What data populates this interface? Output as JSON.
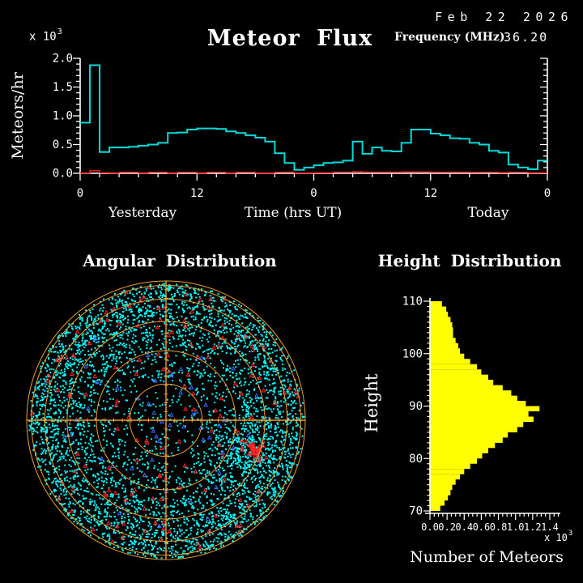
{
  "header": {
    "date": "Feb 22 2026",
    "title": "Meteor Flux",
    "frequency_label": "Frequency (MHz)",
    "frequency_value": "36.20"
  },
  "chart_data": [
    {
      "id": "meteor_flux_timeseries",
      "type": "line",
      "title": "Meteor Flux",
      "ylabel": "Meteors/hr",
      "xlabel": "Time (hrs UT)",
      "day_labels": [
        "Yesterday",
        "Today"
      ],
      "y_scale_factor": {
        "base": "x 10",
        "exponent": "3"
      },
      "ylim": [
        0.0,
        2.0
      ],
      "ytick_labels": [
        "0.0",
        "0.5",
        "1.0",
        "1.5",
        "2.0"
      ],
      "xtick_labels": [
        "0",
        "12",
        "0",
        "12",
        "0"
      ],
      "x_span_hours": 48,
      "grid": false,
      "legend": "none",
      "series": [
        {
          "name": "cyan-flux",
          "color": "#00DCDC",
          "step_values": [
            0.88,
            1.88,
            0.37,
            0.45,
            0.45,
            0.46,
            0.48,
            0.5,
            0.53,
            0.7,
            0.71,
            0.76,
            0.78,
            0.78,
            0.77,
            0.73,
            0.7,
            0.66,
            0.62,
            0.55,
            0.35,
            0.18,
            0.06,
            0.1,
            0.14,
            0.18,
            0.19,
            0.22,
            0.55,
            0.34,
            0.45,
            0.39,
            0.38,
            0.53,
            0.76,
            0.76,
            0.69,
            0.66,
            0.61,
            0.6,
            0.53,
            0.5,
            0.39,
            0.36,
            0.15,
            0.1,
            0.07,
            0.22
          ]
        },
        {
          "name": "red-baseline",
          "color": "#FF1111",
          "step_values": [
            0.005,
            0.045,
            0.008,
            0.005,
            0.018,
            0.018,
            0.005,
            0.018,
            0.018,
            0.005,
            0.018,
            0.018,
            0.005,
            0.018,
            0.018,
            0.005,
            0.018,
            0.018,
            0.005,
            0.005,
            0.018,
            0.018,
            0.005,
            0.005,
            0.008,
            0.008,
            0.02,
            0.02,
            0.028,
            0.02,
            0.02,
            0.02,
            0.02,
            0.022,
            0.022,
            0.022,
            0.02,
            0.018,
            0.02,
            0.02,
            0.015,
            0.018,
            0.018,
            0.012,
            0.018,
            0.018,
            0.008,
            0.008
          ]
        }
      ]
    },
    {
      "id": "angular_distribution",
      "type": "scatter",
      "title": "Angular Distribution",
      "projection": "polar-sky-map",
      "grid_color": "#F0A030",
      "elevation_rings_deg": [
        0,
        15,
        30,
        45,
        60,
        75
      ],
      "ring_radius_fractions": [
        1.0,
        0.968,
        0.87,
        0.71,
        0.5,
        0.26
      ],
      "markers": [
        {
          "name": "echo-dots",
          "color": "#00FFFF",
          "count": 4780
        },
        {
          "name": "red-triangles",
          "color": "#FF2222",
          "count": 150
        },
        {
          "name": "blue-triangles",
          "color": "#3E6BFF",
          "count": 50
        }
      ],
      "density_bands_fraction_weighted": [
        [
          0.78,
          1.0,
          2600
        ],
        [
          0.55,
          0.78,
          1500
        ],
        [
          0.3,
          0.55,
          550
        ],
        [
          0.02,
          0.3,
          130
        ]
      ],
      "dense_cluster": {
        "dx": 95,
        "dy": 36,
        "sigma": 20,
        "count": 260,
        "red_dx": 110,
        "red_dy": 37,
        "red_sigma": 7,
        "red_count": 35
      }
    },
    {
      "id": "height_distribution",
      "type": "bar",
      "title": "Height Distribution",
      "ylabel": "Height",
      "xlabel": "Number of Meteors",
      "x_scale_factor": {
        "base": "x 10",
        "exponent": "3"
      },
      "bar_color": "#FFFF00",
      "ylim_km": [
        70,
        110
      ],
      "xlim": [
        0.0,
        1.5
      ],
      "ytick_labels": [
        "70",
        "80",
        "90",
        "100",
        "110"
      ],
      "xtick_labels": [
        "0.0",
        "0.2",
        "0.4",
        "0.6",
        "0.8",
        "1.0",
        "1.2",
        "1.4"
      ],
      "bin_bottom_km": [
        70,
        71,
        72,
        73,
        74,
        75,
        76,
        77,
        78,
        79,
        80,
        81,
        82,
        83,
        84,
        85,
        86,
        87,
        88,
        89,
        90,
        91,
        92,
        93,
        94,
        95,
        96,
        97,
        98,
        99,
        100,
        101,
        102,
        103,
        104,
        105,
        106,
        107,
        108,
        109
      ],
      "counts": [
        0.12,
        0.17,
        0.21,
        0.24,
        0.26,
        0.3,
        0.35,
        0.4,
        0.47,
        0.55,
        0.61,
        0.68,
        0.76,
        0.85,
        0.91,
        1.02,
        1.09,
        1.21,
        1.15,
        1.28,
        1.12,
        1.02,
        0.95,
        0.85,
        0.74,
        0.68,
        0.6,
        0.55,
        0.47,
        0.4,
        0.35,
        0.33,
        0.3,
        0.27,
        0.27,
        0.26,
        0.24,
        0.21,
        0.19,
        0.14
      ]
    }
  ]
}
